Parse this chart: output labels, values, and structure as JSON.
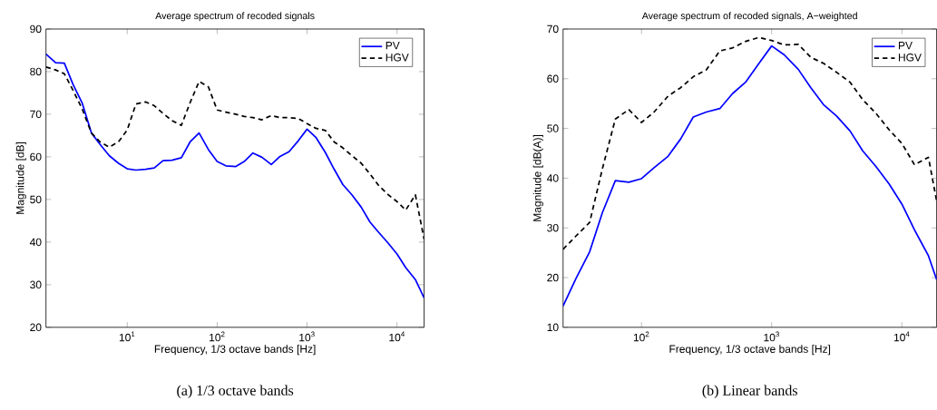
{
  "chart_data": [
    {
      "type": "line",
      "title": "Average spectrum of recoded signals",
      "xlabel": "Frequency, 1/3 octave bands [Hz]",
      "ylabel": "Magnitude [dB]",
      "annotations": [
        "(a) 1/3 octave bands"
      ],
      "log": "x",
      "legend": "top right",
      "marker": "none",
      "grid": false,
      "x": [
        1.25,
        1.6,
        2,
        2.5,
        3.15,
        4,
        5,
        6.3,
        8,
        10,
        12.5,
        16,
        20,
        25,
        31.5,
        40,
        50,
        63,
        80,
        100,
        125,
        160,
        200,
        250,
        315,
        400,
        500,
        630,
        800,
        1000,
        1250,
        1600,
        2000,
        2500,
        3150,
        4000,
        5000,
        6300,
        8000,
        10000,
        12500,
        16000,
        20000
      ],
      "xlim": [
        1.25,
        20000
      ],
      "ylim": [
        20,
        90
      ],
      "xticks": [
        {
          "value": 10,
          "label": "10$^{1}$"
        },
        {
          "value": 100,
          "label": "10$^{2}$"
        },
        {
          "value": 1000,
          "label": "10$^{3}$"
        },
        {
          "value": 10000,
          "label": "10$^{4}$"
        }
      ],
      "yticks": [
        20,
        30,
        40,
        50,
        60,
        70,
        80,
        90
      ],
      "series": [
        {
          "name": "PV",
          "color": "#0000ff",
          "line_style": "solid",
          "values": [
            84.1,
            82.1,
            82.0,
            77.0,
            72.7,
            65.6,
            62.9,
            60.3,
            58.5,
            57.2,
            56.9,
            57.1,
            57.4,
            59.1,
            59.2,
            59.8,
            63.5,
            65.6,
            61.7,
            58.9,
            57.9,
            57.7,
            58.9,
            60.9,
            59.9,
            58.2,
            60.1,
            61.2,
            63.8,
            66.5,
            64.6,
            61.0,
            57.1,
            53.5,
            51.1,
            48.2,
            44.7,
            42.2,
            39.7,
            37.2,
            34.0,
            31.2,
            26.9
          ]
        },
        {
          "name": "HGV",
          "color": "#000000",
          "line_style": "dashed",
          "values": [
            81.1,
            80.4,
            79.5,
            75.6,
            71.3,
            65.6,
            63.5,
            62.3,
            63.5,
            66.3,
            72.4,
            72.9,
            72.0,
            70.2,
            68.5,
            67.4,
            72.7,
            77.7,
            76.4,
            71.0,
            70.5,
            70.0,
            69.5,
            69.2,
            68.7,
            69.7,
            69.2,
            69.2,
            69.0,
            67.8,
            66.7,
            66.2,
            63.5,
            62.1,
            60.3,
            58.5,
            56.0,
            53.2,
            51.1,
            49.5,
            47.5,
            51.1,
            40.7
          ]
        }
      ]
    },
    {
      "type": "line",
      "title": "Average spectrum of recoded signals, A−weighted",
      "xlabel": "Frequency, 1/3 octave bands [Hz]",
      "ylabel": "Magnitude [dB(A)]",
      "annotations": [
        "(b) Linear bands"
      ],
      "log": "x",
      "legend": "top right",
      "marker": "none",
      "grid": false,
      "x": [
        25,
        31.5,
        40,
        50,
        63,
        80,
        100,
        125,
        160,
        200,
        250,
        315,
        400,
        500,
        630,
        800,
        1000,
        1250,
        1600,
        2000,
        2500,
        3150,
        4000,
        5000,
        6300,
        8000,
        10000,
        12500,
        16000,
        18500
      ],
      "xlim": [
        25,
        18500
      ],
      "ylim": [
        10,
        70
      ],
      "xticks": [
        {
          "value": 100,
          "label": "10$^{2}$"
        },
        {
          "value": 1000,
          "label": "10$^{3}$"
        },
        {
          "value": 10000,
          "label": "10$^{4}$"
        }
      ],
      "yticks": [
        10,
        20,
        30,
        40,
        50,
        60,
        70
      ],
      "series": [
        {
          "name": "PV",
          "color": "#0000ff",
          "line_style": "solid",
          "values": [
            14.3,
            19.9,
            25.2,
            33.0,
            39.5,
            39.2,
            39.9,
            42.1,
            44.4,
            47.9,
            52.3,
            53.3,
            54.0,
            57.0,
            59.3,
            63.1,
            66.6,
            64.8,
            61.9,
            58.2,
            54.8,
            52.5,
            49.5,
            45.5,
            42.4,
            38.8,
            34.8,
            29.6,
            24.4,
            19.6
          ]
        },
        {
          "name": "HGV",
          "color": "#000000",
          "line_style": "dashed",
          "values": [
            25.7,
            28.4,
            31.1,
            41.8,
            51.9,
            53.8,
            51.2,
            53.3,
            56.5,
            58.2,
            60.4,
            61.8,
            65.6,
            66.2,
            67.5,
            68.3,
            67.7,
            66.8,
            66.9,
            64.3,
            63.1,
            61.3,
            59.3,
            55.8,
            53.1,
            49.7,
            47.0,
            42.7,
            44.2,
            35.4
          ]
        }
      ]
    }
  ]
}
